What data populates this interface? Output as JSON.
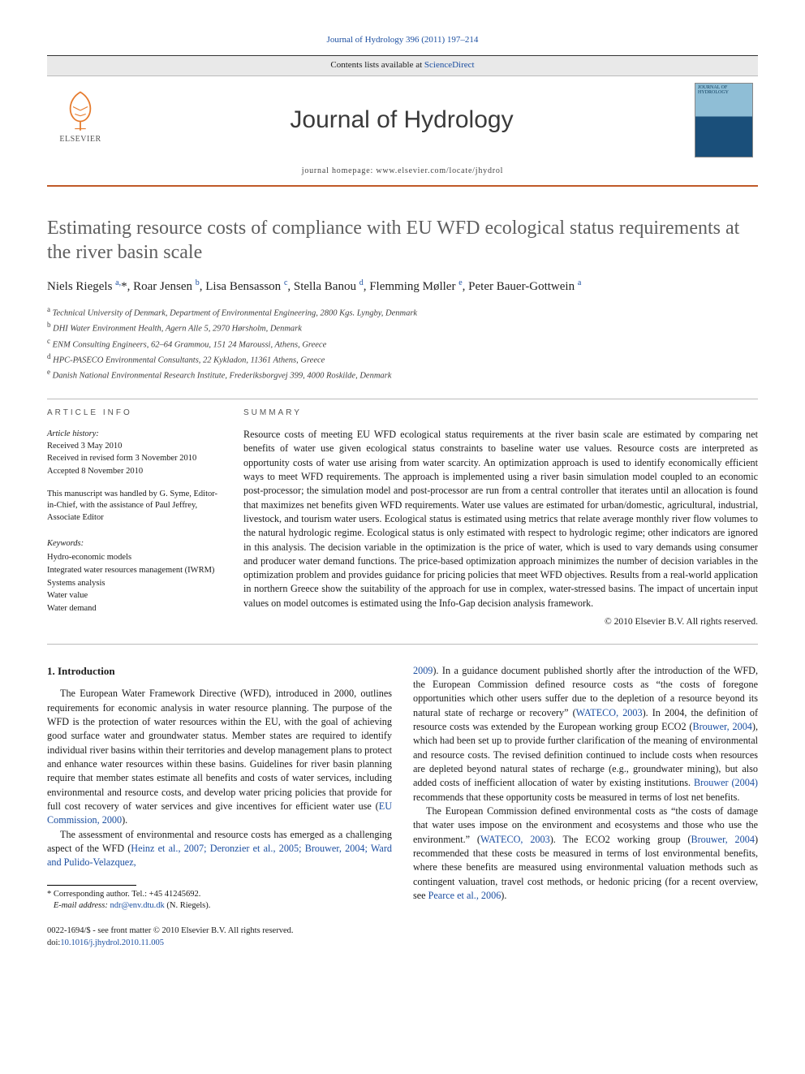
{
  "citation": "Journal of Hydrology 396 (2011) 197–214",
  "header": {
    "contents_line_pre": "Contents lists available at ",
    "contents_link": "ScienceDirect",
    "journal_name": "Journal of Hydrology",
    "homepage_pre": "journal homepage: ",
    "homepage_url": "www.elsevier.com/locate/jhydrol",
    "elsevier_word": "ELSEVIER",
    "cover_label": "JOURNAL OF HYDROLOGY"
  },
  "title": "Estimating resource costs of compliance with EU WFD ecological status requirements at the river basin scale",
  "authors_html": "Niels Riegels <sup>a,</sup>*, Roar Jensen <sup>b</sup>, Lisa Bensasson <sup>c</sup>, Stella Banou <sup>d</sup>, Flemming Møller <sup>e</sup>, Peter Bauer-Gottwein <sup>a</sup>",
  "affils": [
    {
      "sup": "a",
      "text": "Technical University of Denmark, Department of Environmental Engineering, 2800 Kgs. Lyngby, Denmark"
    },
    {
      "sup": "b",
      "text": "DHI Water Environment Health, Agern Alle 5, 2970 Hørsholm, Denmark"
    },
    {
      "sup": "c",
      "text": "ENM Consulting Engineers, 62–64 Grammou, 151 24 Maroussi, Athens, Greece"
    },
    {
      "sup": "d",
      "text": "HPC-PASECO Environmental Consultants, 22 Kykladon, 11361 Athens, Greece"
    },
    {
      "sup": "e",
      "text": "Danish National Environmental Research Institute, Frederiksborgvej 399, 4000 Roskilde, Denmark"
    }
  ],
  "info_head": "ARTICLE INFO",
  "summary_head": "SUMMARY",
  "history": {
    "label": "Article history:",
    "received": "Received 3 May 2010",
    "revised": "Received in revised form 3 November 2010",
    "accepted": "Accepted 8 November 2010"
  },
  "handled": "This manuscript was handled by G. Syme, Editor-in-Chief, with the assistance of Paul Jeffrey, Associate Editor",
  "keywords_label": "Keywords:",
  "keywords": [
    "Hydro-economic models",
    "Integrated water resources management (IWRM)",
    "Systems analysis",
    "Water value",
    "Water demand"
  ],
  "summary": "Resource costs of meeting EU WFD ecological status requirements at the river basin scale are estimated by comparing net benefits of water use given ecological status constraints to baseline water use values. Resource costs are interpreted as opportunity costs of water use arising from water scarcity. An optimization approach is used to identify economically efficient ways to meet WFD requirements. The approach is implemented using a river basin simulation model coupled to an economic post-processor; the simulation model and post-processor are run from a central controller that iterates until an allocation is found that maximizes net benefits given WFD requirements. Water use values are estimated for urban/domestic, agricultural, industrial, livestock, and tourism water users. Ecological status is estimated using metrics that relate average monthly river flow volumes to the natural hydrologic regime. Ecological status is only estimated with respect to hydrologic regime; other indicators are ignored in this analysis. The decision variable in the optimization is the price of water, which is used to vary demands using consumer and producer water demand functions. The price-based optimization approach minimizes the number of decision variables in the optimization problem and provides guidance for pricing policies that meet WFD objectives. Results from a real-world application in northern Greece show the suitability of the approach for use in complex, water-stressed basins. The impact of uncertain input values on model outcomes is estimated using the Info-Gap decision analysis framework.",
  "copyright": "© 2010 Elsevier B.V. All rights reserved.",
  "intro_head": "1. Introduction",
  "paras_left": [
    "The European Water Framework Directive (WFD), introduced in 2000, outlines requirements for economic analysis in water resource planning. The purpose of the WFD is the protection of water resources within the EU, with the goal of achieving good surface water and groundwater status. Member states are required to identify individual river basins within their territories and develop management plans to protect and enhance water resources within these basins. Guidelines for river basin planning require that member states estimate all benefits and costs of water services, including environmental and resource costs, and develop water pricing policies that provide for full cost recovery of water services and give incentives for efficient water use (<a class=\"ref\">EU Commission, 2000</a>).",
    "The assessment of environmental and resource costs has emerged as a challenging aspect of the WFD (<a class=\"ref\">Heinz et al., 2007; Deronzier et al., 2005; Brouwer, 2004; Ward and Pulido-Velazquez,</a>"
  ],
  "paras_right": [
    "<a class=\"ref\">2009</a>). In a guidance document published shortly after the introduction of the WFD, the European Commission defined resource costs as “the costs of foregone opportunities which other users suffer due to the depletion of a resource beyond its natural state of recharge or recovery” (<a class=\"ref\">WATECO, 2003</a>). In 2004, the definition of resource costs was extended by the European working group ECO2 (<a class=\"ref\">Brouwer, 2004</a>), which had been set up to provide further clarification of the meaning of environmental and resource costs. The revised definition continued to include costs when resources are depleted beyond natural states of recharge (e.g., groundwater mining), but also added costs of inefficient allocation of water by existing institutions. <a class=\"ref\">Brouwer (2004)</a> recommends that these opportunity costs be measured in terms of lost net benefits.",
    "The European Commission defined environmental costs as “the costs of damage that water uses impose on the environment and ecosystems and those who use the environment.” (<a class=\"ref\">WATECO, 2003</a>). The ECO2 working group (<a class=\"ref\">Brouwer, 2004</a>) recommended that these costs be measured in terms of lost environmental benefits, where these benefits are measured using environmental valuation methods such as contingent valuation, travel cost methods, or hedonic pricing (for a recent overview, see <a class=\"ref\">Pearce et al., 2006</a>)."
  ],
  "corresponding": {
    "star": "*",
    "label": "Corresponding author. Tel.: +45 41245692.",
    "email_label": "E-mail address: ",
    "email": "ndr@env.dtu.dk",
    "after": " (N. Riegels)."
  },
  "docid": {
    "line1": "0022-1694/$ - see front matter © 2010 Elsevier B.V. All rights reserved.",
    "doi_label": "doi:",
    "doi": "10.1016/j.jhydrol.2010.11.005"
  },
  "colors": {
    "link": "#1b4ea0",
    "rule": "#c05a28",
    "title_gray": "#5f5f5f",
    "logo_orange": "#e67b2d"
  }
}
